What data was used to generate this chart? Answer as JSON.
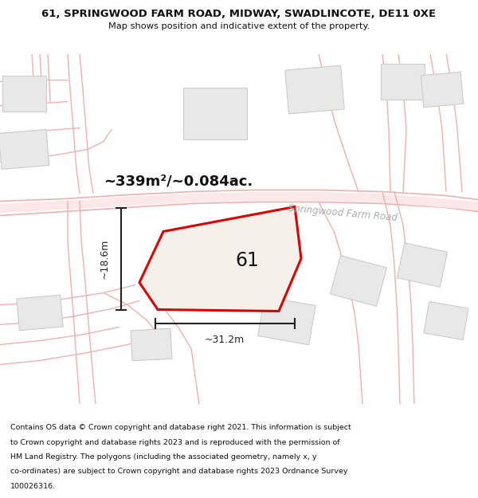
{
  "title_line1": "61, SPRINGWOOD FARM ROAD, MIDWAY, SWADLINCOTE, DE11 0XE",
  "title_line2": "Map shows position and indicative extent of the property.",
  "area_label": "~339m²/~0.084ac.",
  "plot_number": "61",
  "road_label": "Springwood Farm Road",
  "dim_width": "~31.2m",
  "dim_height": "~18.6m",
  "footer_lines": [
    "Contains OS data © Crown copyright and database right 2021. This information is subject",
    "to Crown copyright and database rights 2023 and is reproduced with the permission of",
    "HM Land Registry. The polygons (including the associated geometry, namely x, y",
    "co-ordinates) are subject to Crown copyright and database rights 2023 Ordnance Survey",
    "100026316."
  ],
  "map_bg": "#ffffff",
  "road_color": "#f0b0b0",
  "plot_fill": "#f5f0ea",
  "plot_border": "#dd0000",
  "building_fill": "#e8e8e8",
  "building_border": "#cccccc",
  "text_dark": "#111111",
  "text_gray": "#aaaaaa",
  "dim_color": "#222222",
  "road_label_color": "#aaaaaa"
}
